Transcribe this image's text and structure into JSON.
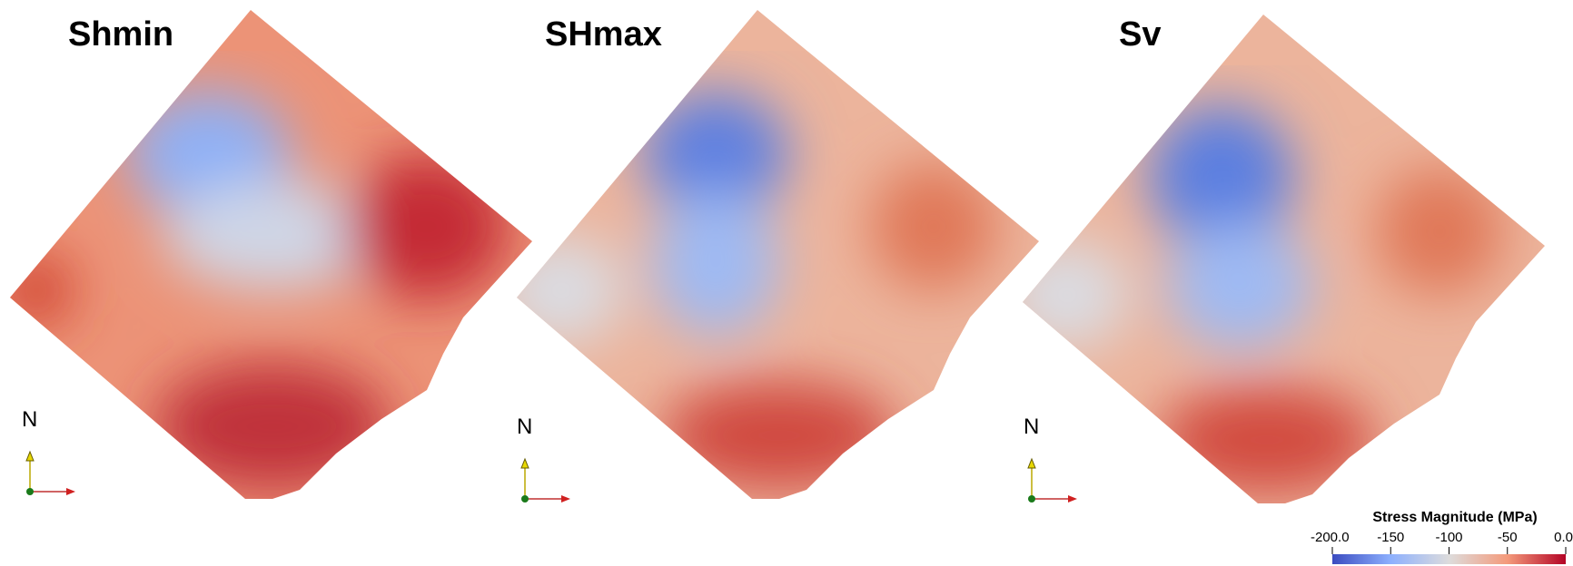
{
  "panels": [
    {
      "title": "Shmin",
      "north_label": "N"
    },
    {
      "title": "SHmax",
      "north_label": "N"
    },
    {
      "title": "Sv",
      "north_label": "N"
    }
  ],
  "colorbar": {
    "title": "Stress Magnitude (MPa)",
    "range": [
      -200,
      0
    ],
    "ticks": [
      {
        "value": -200,
        "label": "-200.0"
      },
      -150,
      -100,
      -50,
      {
        "value": 0,
        "label": "0.0"
      }
    ]
  }
}
